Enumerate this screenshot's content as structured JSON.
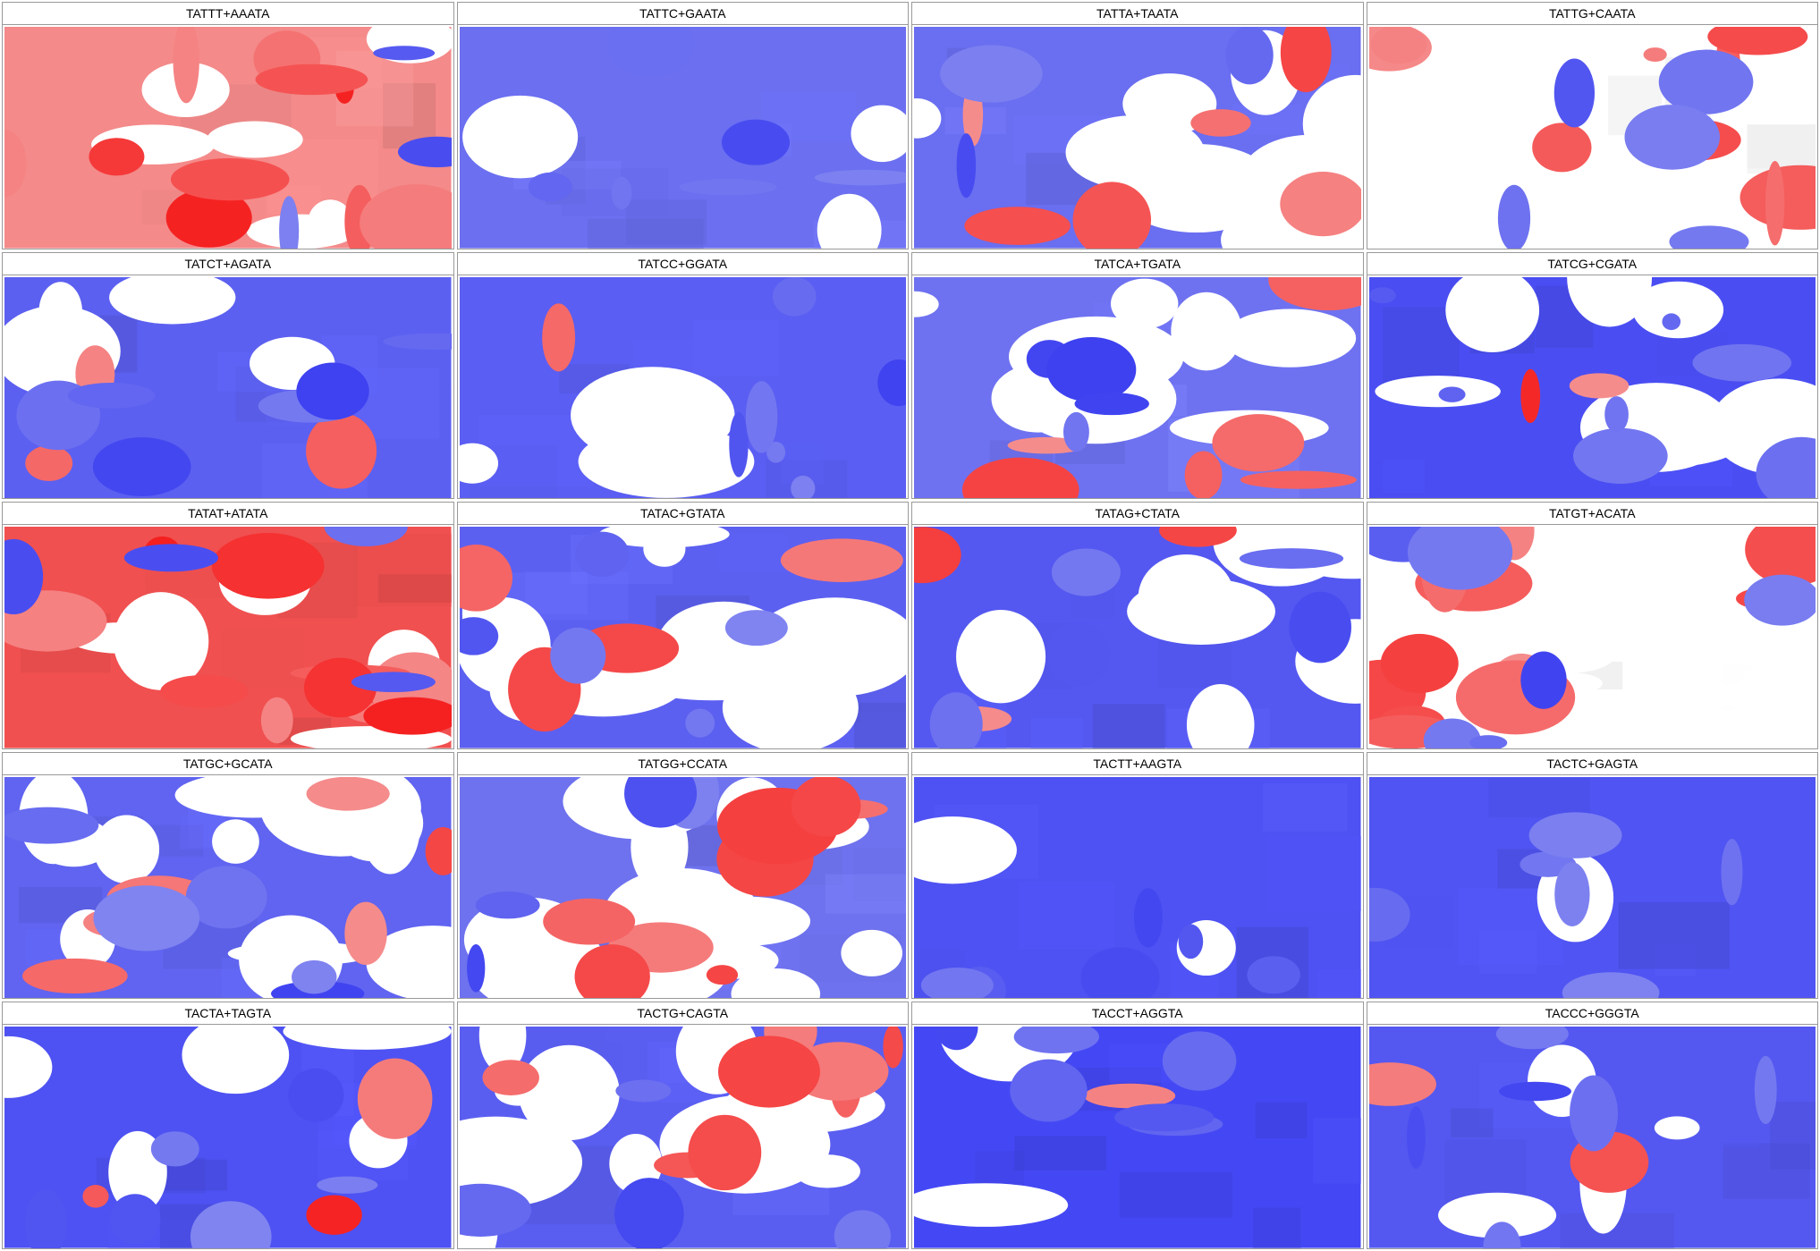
{
  "table": {
    "cells": [
      {
        "title": "TATTT+AAATA"
      },
      {
        "title": "TATTC+GAATA"
      },
      {
        "title": "TATTA+TAATA"
      },
      {
        "title": "TATTG+CAATA"
      },
      {
        "title": "TATCT+AGATA"
      },
      {
        "title": "TATCC+GGATA"
      },
      {
        "title": "TATCA+TGATA"
      },
      {
        "title": "TATCG+CGATA"
      },
      {
        "title": "TATAT+ATATA"
      },
      {
        "title": "TATAC+GTATA"
      },
      {
        "title": "TATAG+CTATA"
      },
      {
        "title": "TATGT+ACATA"
      },
      {
        "title": "TATGC+GCATA"
      },
      {
        "title": "TATGG+CCATA"
      },
      {
        "title": "TACTT+AAGTA"
      },
      {
        "title": "TACTC+GAGTA"
      },
      {
        "title": "TACTA+TAGTA"
      },
      {
        "title": "TACTG+CAGTA"
      },
      {
        "title": "TACCT+AGGTA"
      },
      {
        "title": "TACCC+GGGTA"
      }
    ]
  }
}
